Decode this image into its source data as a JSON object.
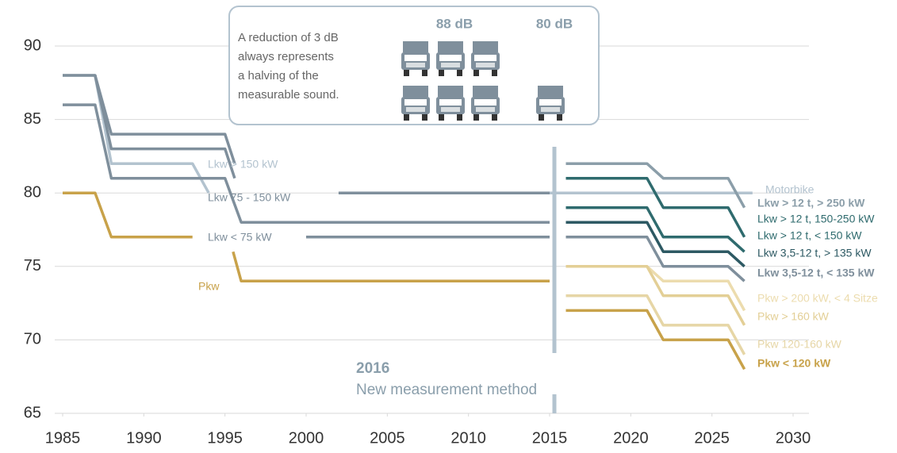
{
  "chart_data": {
    "type": "line",
    "xlim": [
      1985,
      2030
    ],
    "xticks": [
      1985,
      1990,
      1995,
      2000,
      2005,
      2010,
      2015,
      2020,
      2025,
      2030
    ],
    "ylim": [
      65,
      90
    ],
    "yticks": [
      65,
      70,
      75,
      80,
      85,
      90
    ],
    "grid": true,
    "series": [
      {
        "name": "Lkw > 150 kW",
        "color": "#b3c3cf",
        "x": [
          1985,
          1987,
          1988,
          1993,
          1994
        ],
        "y": [
          88,
          88,
          82,
          82,
          80
        ]
      },
      {
        "color": "#7f8f9c",
        "x": [
          1985,
          1987,
          1988,
          1995,
          1995.6
        ],
        "y": [
          88,
          88,
          84,
          84,
          82
        ]
      },
      {
        "color": "#7f8f9c",
        "x": [
          1987,
          1988,
          1995,
          1995.6
        ],
        "y": [
          88,
          83,
          83,
          81
        ]
      },
      {
        "name": "Lkw 75 - 150 kW",
        "color": "#7f8f9c",
        "x": [
          1985,
          1987,
          1988,
          1995,
          1996,
          2015
        ],
        "y": [
          86,
          86,
          81,
          81,
          78,
          78
        ]
      },
      {
        "color": "#7f8f9c",
        "x": [
          2002,
          2015
        ],
        "y": [
          80,
          80
        ]
      },
      {
        "name": "Lkw < 75 kW",
        "color": "#7f8f9c",
        "x": [
          2000,
          2015
        ],
        "y": [
          77,
          77
        ]
      },
      {
        "name": "Pkw",
        "color": "#c8a24a",
        "x": [
          1985,
          1987,
          1988,
          1993,
          null,
          1995.5,
          1996,
          2015
        ],
        "y": [
          80,
          80,
          77,
          77,
          null,
          76,
          74,
          74
        ]
      },
      {
        "name": "Motorbike",
        "color": "#b3c3cf",
        "x": [
          2015,
          2027.5
        ],
        "y": [
          80,
          80
        ]
      },
      {
        "name": "Lkw > 12 t, > 250 kW",
        "color": "#8b9ea9",
        "bold": true,
        "x": [
          2016,
          2021,
          2022,
          2026,
          2027
        ],
        "y": [
          82,
          82,
          81,
          81,
          79
        ]
      },
      {
        "name": "Lkw > 12 t, 150-250 kW",
        "color": "#2f6b6e",
        "x": [
          2016,
          2021,
          2022,
          2026,
          2027
        ],
        "y": [
          81,
          81,
          79,
          79,
          77
        ]
      },
      {
        "name": "Lkw > 12 t, < 150 kW",
        "color": "#2f6b6e",
        "x": [
          2016,
          2021,
          2022,
          2026,
          2027
        ],
        "y": [
          79,
          79,
          77,
          77,
          76
        ]
      },
      {
        "name": "Lkw 3,5-12 t, > 135 kW",
        "color": "#2d5963",
        "x": [
          2016,
          2021,
          2022,
          2026,
          2027
        ],
        "y": [
          78,
          78,
          76,
          76,
          75
        ]
      },
      {
        "name": "Lkw 3,5-12 t, < 135 kW",
        "color": "#7f8f9c",
        "bold": true,
        "x": [
          2016,
          2021,
          2022,
          2026,
          2027
        ],
        "y": [
          77,
          77,
          75,
          75,
          74
        ]
      },
      {
        "name": "Pkw > 200 kW, < 4 Sitze",
        "color": "#ecdcae",
        "x": [
          2016,
          2021,
          2022,
          2026,
          2027
        ],
        "y": [
          75,
          75,
          74,
          74,
          72
        ]
      },
      {
        "name": "Pkw > 160 kW",
        "color": "#e3cf96",
        "x": [
          2016,
          2021,
          2022,
          2026,
          2027
        ],
        "y": [
          75,
          75,
          73,
          73,
          71
        ]
      },
      {
        "name": "Pkw 120-160 kW",
        "color": "#e6d6a6",
        "x": [
          2016,
          2021,
          2022,
          2026,
          2027
        ],
        "y": [
          73,
          73,
          71,
          71,
          69
        ]
      },
      {
        "name": "Pkw < 120 kW",
        "color": "#c8a24a",
        "bold": true,
        "x": [
          2016,
          2021,
          2022,
          2026,
          2027
        ],
        "y": [
          72,
          72,
          70,
          70,
          68
        ]
      }
    ],
    "annotations": {
      "year": "2016",
      "method": "New measurement method",
      "box_lines": [
        "A reduction of 3 dB",
        "always represents",
        "a halving of the",
        "measurable sound."
      ],
      "before": "88 dB",
      "after": "80 dB"
    }
  }
}
